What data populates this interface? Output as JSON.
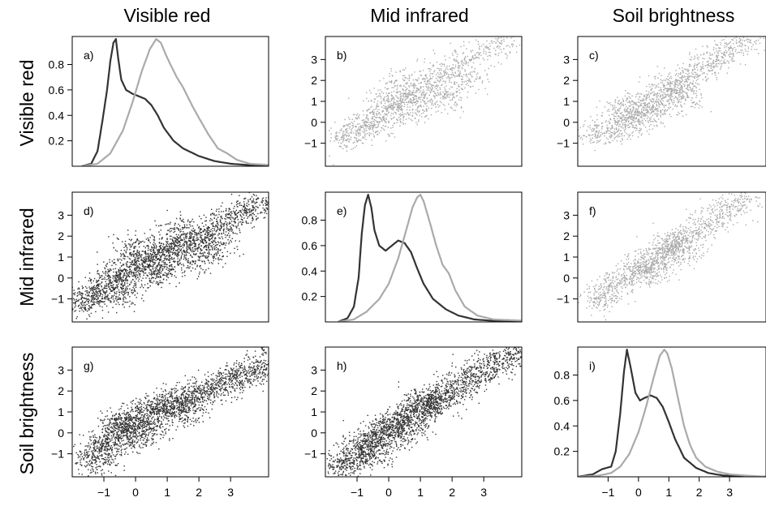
{
  "figure": {
    "column_titles": [
      "Visible red",
      "Mid infrared",
      "Soil brightness"
    ],
    "row_titles": [
      "Visible red",
      "Mid infrared",
      "Soil brightness"
    ]
  },
  "chart_data": [
    {
      "panel": "a)",
      "type": "line",
      "row": 0,
      "col": 0,
      "xlim": [
        -2,
        4.2
      ],
      "ylim": [
        0,
        1.02
      ],
      "yticks": [
        0.2,
        0.4,
        0.6,
        0.8
      ],
      "ytick_labels": [
        "0.2",
        "0.4",
        "0.6",
        "0.8"
      ],
      "series": [
        {
          "color": "#333333",
          "x": [
            -1.7,
            -1.4,
            -1.2,
            -1.05,
            -0.9,
            -0.8,
            -0.7,
            -0.62,
            -0.55,
            -0.45,
            -0.3,
            -0.1,
            0.1,
            0.3,
            0.5,
            0.7,
            0.9,
            1.2,
            1.5,
            2.0,
            2.5,
            3.0,
            3.5,
            4.2
          ],
          "y": [
            0.0,
            0.02,
            0.12,
            0.35,
            0.6,
            0.82,
            0.97,
            1.0,
            0.85,
            0.68,
            0.6,
            0.57,
            0.55,
            0.53,
            0.48,
            0.4,
            0.3,
            0.2,
            0.14,
            0.08,
            0.04,
            0.02,
            0.01,
            0.005
          ]
        },
        {
          "color": "#aaaaaa",
          "x": [
            -1.7,
            -1.2,
            -0.8,
            -0.4,
            -0.1,
            0.2,
            0.45,
            0.65,
            0.8,
            0.95,
            1.1,
            1.3,
            1.5,
            1.8,
            2.0,
            2.3,
            2.6,
            2.9,
            3.2,
            3.6,
            4.2
          ],
          "y": [
            0.0,
            0.02,
            0.1,
            0.28,
            0.5,
            0.75,
            0.92,
            1.0,
            0.97,
            0.88,
            0.8,
            0.7,
            0.62,
            0.47,
            0.38,
            0.25,
            0.14,
            0.1,
            0.05,
            0.02,
            0.01
          ]
        }
      ]
    },
    {
      "panel": "b)",
      "type": "scatter",
      "row": 0,
      "col": 1,
      "color": "#aaaaaa",
      "density": "light",
      "xlim": [
        -2,
        4.2
      ],
      "ylim": [
        -2.1,
        4.1
      ],
      "yticks": [
        -1,
        0,
        1,
        2,
        3
      ],
      "ytick_labels": [
        "−1",
        "0",
        "1",
        "2",
        "3"
      ],
      "points": [
        [
          -1.5,
          -0.8
        ],
        [
          -1.2,
          -0.5
        ],
        [
          -1.0,
          -0.4
        ],
        [
          -0.8,
          0.0
        ],
        [
          -0.5,
          0.2
        ],
        [
          -0.2,
          0.5
        ],
        [
          0.0,
          0.7
        ],
        [
          0.3,
          0.9
        ],
        [
          0.6,
          1.2
        ],
        [
          0.9,
          1.5
        ],
        [
          1.2,
          1.8
        ],
        [
          1.5,
          2.1
        ],
        [
          1.8,
          2.4
        ],
        [
          2.2,
          2.7
        ],
        [
          2.6,
          3.0
        ],
        [
          3.0,
          3.4
        ],
        [
          3.5,
          3.8
        ],
        [
          0.5,
          0.4
        ],
        [
          1.0,
          0.8
        ],
        [
          1.5,
          1.3
        ],
        [
          0.0,
          1.4
        ],
        [
          0.5,
          2.0
        ],
        [
          -0.5,
          -0.3
        ],
        [
          1.8,
          1.2
        ],
        [
          2.5,
          2.0
        ]
      ]
    },
    {
      "panel": "c)",
      "type": "scatter",
      "row": 0,
      "col": 2,
      "color": "#aaaaaa",
      "density": "light",
      "xlim": [
        -2,
        4.2
      ],
      "ylim": [
        -2.1,
        4.1
      ],
      "yticks": [
        -1,
        0,
        1,
        2,
        3
      ],
      "ytick_labels": [
        "−1",
        "0",
        "1",
        "2",
        "3"
      ],
      "points": [
        [
          -1.5,
          -0.6
        ],
        [
          -1.0,
          -0.4
        ],
        [
          -0.7,
          -0.1
        ],
        [
          -0.4,
          0.2
        ],
        [
          -0.1,
          0.5
        ],
        [
          0.2,
          0.8
        ],
        [
          0.5,
          1.0
        ],
        [
          0.8,
          1.3
        ],
        [
          1.1,
          1.6
        ],
        [
          1.4,
          1.9
        ],
        [
          1.8,
          2.3
        ],
        [
          2.2,
          2.7
        ],
        [
          2.6,
          3.1
        ],
        [
          3.0,
          3.5
        ],
        [
          3.5,
          3.9
        ],
        [
          0.5,
          0.5
        ],
        [
          1.0,
          1.8
        ],
        [
          0.0,
          0.0
        ],
        [
          1.5,
          1.2
        ],
        [
          -0.5,
          0.8
        ]
      ]
    },
    {
      "panel": "d)",
      "type": "scatter",
      "row": 1,
      "col": 0,
      "color": "#333333",
      "density": "heavy",
      "xlim": [
        -2,
        4.2
      ],
      "ylim": [
        -2.1,
        4.1
      ],
      "yticks": [
        -1,
        0,
        1,
        2,
        3
      ],
      "ytick_labels": [
        "−1",
        "0",
        "1",
        "2",
        "3"
      ],
      "points": [
        [
          -1.7,
          -1.2
        ],
        [
          -1.4,
          -0.9
        ],
        [
          -1.1,
          -0.6
        ],
        [
          -0.8,
          -0.2
        ],
        [
          -0.5,
          0.2
        ],
        [
          -0.2,
          0.5
        ],
        [
          0.1,
          0.8
        ],
        [
          0.4,
          1.0
        ],
        [
          0.7,
          1.2
        ],
        [
          1.0,
          1.4
        ],
        [
          1.4,
          1.6
        ],
        [
          1.8,
          1.8
        ],
        [
          2.2,
          2.1
        ],
        [
          2.6,
          2.4
        ],
        [
          3.0,
          2.8
        ],
        [
          3.5,
          3.2
        ],
        [
          4.0,
          3.6
        ],
        [
          0.5,
          0.2
        ],
        [
          1.0,
          0.5
        ],
        [
          2.0,
          1.0
        ],
        [
          -0.5,
          -0.7
        ],
        [
          0.0,
          1.5
        ],
        [
          1.5,
          2.4
        ],
        [
          2.5,
          1.4
        ]
      ]
    },
    {
      "panel": "e)",
      "type": "line",
      "row": 1,
      "col": 1,
      "xlim": [
        -2,
        4.2
      ],
      "ylim": [
        0,
        1.02
      ],
      "yticks": [
        0.2,
        0.4,
        0.6,
        0.8
      ],
      "ytick_labels": [
        "0.2",
        "0.4",
        "0.6",
        "0.8"
      ],
      "series": [
        {
          "color": "#333333",
          "x": [
            -1.6,
            -1.3,
            -1.1,
            -0.95,
            -0.85,
            -0.75,
            -0.65,
            -0.55,
            -0.45,
            -0.3,
            -0.1,
            0.1,
            0.3,
            0.5,
            0.7,
            0.9,
            1.1,
            1.4,
            1.8,
            2.2,
            2.7,
            3.2,
            4.2
          ],
          "y": [
            0.0,
            0.03,
            0.12,
            0.35,
            0.7,
            0.92,
            1.0,
            0.9,
            0.72,
            0.6,
            0.56,
            0.6,
            0.64,
            0.62,
            0.55,
            0.42,
            0.3,
            0.18,
            0.1,
            0.05,
            0.02,
            0.01,
            0.005
          ]
        },
        {
          "color": "#aaaaaa",
          "x": [
            -1.6,
            -1.1,
            -0.7,
            -0.3,
            0.0,
            0.3,
            0.55,
            0.75,
            0.9,
            1.0,
            1.1,
            1.3,
            1.5,
            1.7,
            1.9,
            2.1,
            2.4,
            2.8,
            3.3,
            4.2
          ],
          "y": [
            0.0,
            0.02,
            0.08,
            0.18,
            0.3,
            0.5,
            0.72,
            0.9,
            0.98,
            1.0,
            0.95,
            0.78,
            0.6,
            0.45,
            0.38,
            0.25,
            0.12,
            0.05,
            0.02,
            0.01
          ]
        }
      ]
    },
    {
      "panel": "f)",
      "type": "scatter",
      "row": 1,
      "col": 2,
      "color": "#aaaaaa",
      "density": "light",
      "xlim": [
        -2,
        4.2
      ],
      "ylim": [
        -2.1,
        4.1
      ],
      "yticks": [
        -1,
        0,
        1,
        2,
        3
      ],
      "ytick_labels": [
        "−1",
        "0",
        "1",
        "2",
        "3"
      ],
      "points": [
        [
          -1.3,
          -1.0
        ],
        [
          -1.0,
          -0.6
        ],
        [
          -0.6,
          -0.2
        ],
        [
          -0.2,
          0.2
        ],
        [
          0.2,
          0.6
        ],
        [
          0.5,
          0.9
        ],
        [
          0.8,
          1.2
        ],
        [
          1.1,
          1.5
        ],
        [
          1.4,
          1.8
        ],
        [
          1.8,
          2.2
        ],
        [
          2.2,
          2.6
        ],
        [
          2.6,
          3.0
        ],
        [
          3.0,
          3.4
        ],
        [
          3.5,
          3.8
        ],
        [
          0.5,
          0.3
        ],
        [
          1.0,
          1.6
        ],
        [
          0.0,
          0.5
        ],
        [
          1.5,
          1.3
        ]
      ]
    },
    {
      "panel": "g)",
      "type": "scatter",
      "row": 2,
      "col": 0,
      "color": "#333333",
      "density": "heavy",
      "xlim": [
        -2,
        4.2
      ],
      "ylim": [
        -2.1,
        4.1
      ],
      "yticks": [
        -1,
        0,
        1,
        2,
        3
      ],
      "ytick_labels": [
        "−1",
        "0",
        "1",
        "2",
        "3"
      ],
      "xticks": [
        -1,
        0,
        1,
        2,
        3
      ],
      "xtick_labels": [
        "−1",
        "0",
        "1",
        "2",
        "3"
      ],
      "points": [
        [
          -1.3,
          -1.3
        ],
        [
          -1.1,
          -0.9
        ],
        [
          -0.9,
          -0.5
        ],
        [
          -0.6,
          -0.1
        ],
        [
          -0.3,
          0.3
        ],
        [
          0.0,
          0.6
        ],
        [
          0.3,
          0.9
        ],
        [
          0.6,
          1.1
        ],
        [
          0.9,
          1.3
        ],
        [
          1.2,
          1.5
        ],
        [
          1.6,
          1.7
        ],
        [
          2.0,
          1.9
        ],
        [
          2.4,
          2.1
        ],
        [
          2.8,
          2.4
        ],
        [
          3.2,
          2.7
        ],
        [
          3.7,
          3.0
        ],
        [
          4.1,
          3.3
        ],
        [
          0.0,
          -0.2
        ],
        [
          0.5,
          0.2
        ],
        [
          1.5,
          1.0
        ],
        [
          -0.5,
          0.5
        ]
      ]
    },
    {
      "panel": "h)",
      "type": "scatter",
      "row": 2,
      "col": 1,
      "color": "#333333",
      "density": "heavy",
      "xlim": [
        -2,
        4.2
      ],
      "ylim": [
        -2.1,
        4.1
      ],
      "yticks": [
        -1,
        0,
        1,
        2,
        3
      ],
      "ytick_labels": [
        "−1",
        "0",
        "1",
        "2",
        "3"
      ],
      "xticks": [
        -1,
        0,
        1,
        2,
        3
      ],
      "xtick_labels": [
        "−1",
        "0",
        "1",
        "2",
        "3"
      ],
      "points": [
        [
          -1.5,
          -1.6
        ],
        [
          -1.2,
          -1.2
        ],
        [
          -0.9,
          -0.8
        ],
        [
          -0.6,
          -0.4
        ],
        [
          -0.3,
          -0.1
        ],
        [
          0.0,
          0.2
        ],
        [
          0.3,
          0.5
        ],
        [
          0.6,
          0.8
        ],
        [
          0.9,
          1.0
        ],
        [
          1.2,
          1.3
        ],
        [
          1.5,
          1.6
        ],
        [
          1.8,
          1.9
        ],
        [
          2.2,
          2.3
        ],
        [
          2.6,
          2.7
        ],
        [
          3.0,
          3.1
        ],
        [
          3.5,
          3.4
        ],
        [
          4.0,
          3.8
        ],
        [
          0.5,
          0.1
        ],
        [
          1.0,
          1.5
        ],
        [
          -0.5,
          -0.9
        ]
      ]
    },
    {
      "panel": "i)",
      "type": "line",
      "row": 2,
      "col": 2,
      "xlim": [
        -2,
        4.2
      ],
      "ylim": [
        0,
        1.02
      ],
      "yticks": [
        0.2,
        0.4,
        0.6,
        0.8
      ],
      "ytick_labels": [
        "0.2",
        "0.4",
        "0.6",
        "0.8"
      ],
      "xticks": [
        -1,
        0,
        1,
        2,
        3
      ],
      "xtick_labels": [
        "−1",
        "0",
        "1",
        "2",
        "3"
      ],
      "series": [
        {
          "color": "#333333",
          "x": [
            -2.0,
            -1.5,
            -1.2,
            -0.9,
            -0.75,
            -0.6,
            -0.48,
            -0.38,
            -0.25,
            -0.1,
            0.05,
            0.2,
            0.4,
            0.6,
            0.8,
            1.0,
            1.2,
            1.5,
            1.9,
            2.3,
            2.8,
            3.5,
            4.2
          ],
          "y": [
            0.0,
            0.02,
            0.06,
            0.08,
            0.2,
            0.5,
            0.82,
            1.0,
            0.85,
            0.66,
            0.6,
            0.62,
            0.64,
            0.62,
            0.55,
            0.43,
            0.3,
            0.15,
            0.07,
            0.03,
            0.01,
            0.005,
            0.0
          ]
        },
        {
          "color": "#aaaaaa",
          "x": [
            -2.0,
            -1.3,
            -0.9,
            -0.6,
            -0.3,
            0.0,
            0.25,
            0.5,
            0.7,
            0.85,
            0.95,
            1.1,
            1.3,
            1.5,
            1.7,
            1.9,
            2.2,
            2.6,
            3.0,
            3.5,
            4.2
          ],
          "y": [
            0.0,
            0.01,
            0.03,
            0.08,
            0.18,
            0.35,
            0.55,
            0.78,
            0.95,
            1.0,
            0.97,
            0.85,
            0.62,
            0.4,
            0.25,
            0.15,
            0.08,
            0.04,
            0.02,
            0.01,
            0.0
          ]
        }
      ]
    }
  ]
}
